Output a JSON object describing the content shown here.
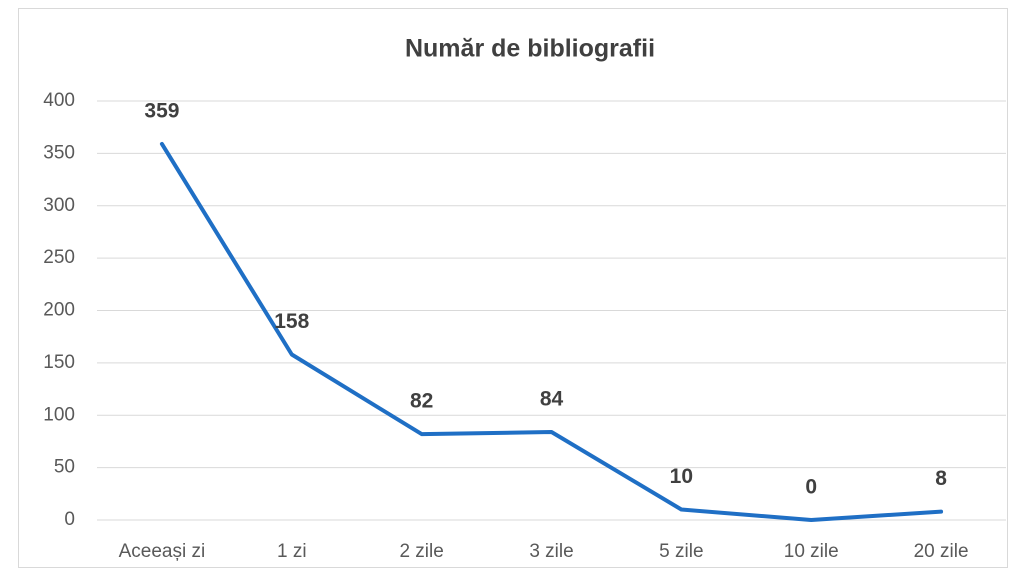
{
  "chart_data": {
    "type": "line",
    "title": "Număr de bibliografii",
    "categories": [
      "Aceeași zi",
      "1 zi",
      "2 zile",
      "3 zile",
      "5 zile",
      "10 zile",
      "20 zile"
    ],
    "values": [
      359,
      158,
      82,
      84,
      10,
      0,
      8
    ],
    "color": "#1f6fc5",
    "ylim": [
      0,
      400
    ],
    "yticks": [
      0,
      50,
      100,
      150,
      200,
      250,
      300,
      350,
      400
    ],
    "grid": true
  }
}
